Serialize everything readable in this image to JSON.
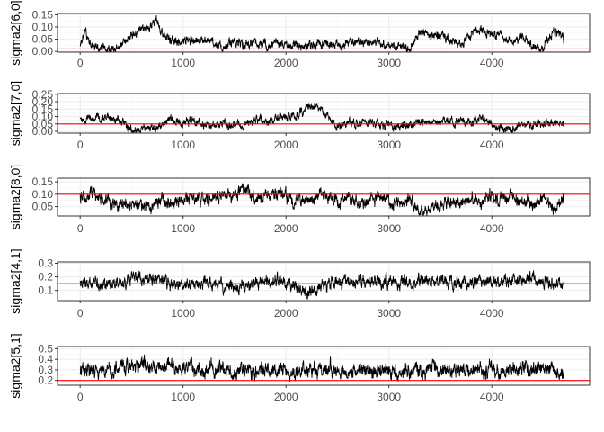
{
  "colors": {
    "trace": "#000000",
    "reference_line": "#ff0000",
    "grid_major": "#ebebeb",
    "grid_minor": "#f4f4f4",
    "panel_border": "#333333",
    "tick_text": "#4d4d4d"
  },
  "chart_data": [
    {
      "type": "line",
      "ylabel": "sigma2[6,0]",
      "x_ticks": [
        0,
        1000,
        2000,
        3000,
        4000
      ],
      "y_ticks": [
        0.0,
        0.05,
        0.1,
        0.15
      ],
      "y_tick_labels": [
        "0.00",
        "0.05",
        "0.10",
        "0.15"
      ],
      "xlim": [
        -220,
        4950
      ],
      "ylim": [
        -0.003,
        0.155
      ],
      "n_iterations": 4700,
      "reference_value": 0.01,
      "trace_profile": [
        [
          0,
          0.015
        ],
        [
          50,
          0.08
        ],
        [
          120,
          0.02
        ],
        [
          250,
          0.005
        ],
        [
          350,
          0.01
        ],
        [
          400,
          0.03
        ],
        [
          500,
          0.06
        ],
        [
          600,
          0.09
        ],
        [
          700,
          0.11
        ],
        [
          740,
          0.14
        ],
        [
          800,
          0.07
        ],
        [
          900,
          0.04
        ],
        [
          1000,
          0.045
        ],
        [
          1100,
          0.04
        ],
        [
          1200,
          0.05
        ],
        [
          1300,
          0.03
        ],
        [
          1400,
          0.02
        ],
        [
          1500,
          0.04
        ],
        [
          1600,
          0.025
        ],
        [
          1700,
          0.035
        ],
        [
          1800,
          0.02
        ],
        [
          1900,
          0.03
        ],
        [
          2000,
          0.025
        ],
        [
          2100,
          0.02
        ],
        [
          2200,
          0.03
        ],
        [
          2300,
          0.035
        ],
        [
          2400,
          0.03
        ],
        [
          2500,
          0.025
        ],
        [
          2600,
          0.03
        ],
        [
          2700,
          0.035
        ],
        [
          2800,
          0.04
        ],
        [
          2900,
          0.035
        ],
        [
          3000,
          0.03
        ],
        [
          3100,
          0.02
        ],
        [
          3200,
          0.01
        ],
        [
          3300,
          0.08
        ],
        [
          3400,
          0.07
        ],
        [
          3500,
          0.06
        ],
        [
          3600,
          0.05
        ],
        [
          3700,
          0.03
        ],
        [
          3800,
          0.07
        ],
        [
          3900,
          0.09
        ],
        [
          4000,
          0.065
        ],
        [
          4100,
          0.06
        ],
        [
          4200,
          0.03
        ],
        [
          4300,
          0.06
        ],
        [
          4400,
          0.02
        ],
        [
          4500,
          0.015
        ],
        [
          4600,
          0.08
        ],
        [
          4700,
          0.05
        ]
      ],
      "noise_level": 0.012
    },
    {
      "type": "line",
      "ylabel": "sigma2[7,0]",
      "x_ticks": [
        0,
        1000,
        2000,
        3000,
        4000
      ],
      "y_ticks": [
        0.0,
        0.05,
        0.1,
        0.15,
        0.2,
        0.25
      ],
      "y_tick_labels": [
        "0.00",
        "0.05",
        "0.10",
        "0.15",
        "0.20",
        "0.25"
      ],
      "xlim": [
        -220,
        4950
      ],
      "ylim": [
        -0.012,
        0.255
      ],
      "n_iterations": 4700,
      "reference_value": 0.05,
      "trace_profile": [
        [
          0,
          0.07
        ],
        [
          100,
          0.09
        ],
        [
          200,
          0.1
        ],
        [
          300,
          0.09
        ],
        [
          400,
          0.06
        ],
        [
          500,
          0.01
        ],
        [
          600,
          0.0
        ],
        [
          700,
          0.02
        ],
        [
          800,
          0.05
        ],
        [
          900,
          0.08
        ],
        [
          1000,
          0.06
        ],
        [
          1100,
          0.08
        ],
        [
          1200,
          0.03
        ],
        [
          1300,
          0.04
        ],
        [
          1400,
          0.05
        ],
        [
          1500,
          0.05
        ],
        [
          1600,
          0.04
        ],
        [
          1700,
          0.09
        ],
        [
          1800,
          0.06
        ],
        [
          1900,
          0.1
        ],
        [
          2000,
          0.09
        ],
        [
          2100,
          0.1
        ],
        [
          2200,
          0.16
        ],
        [
          2300,
          0.17
        ],
        [
          2400,
          0.1
        ],
        [
          2500,
          0.04
        ],
        [
          2600,
          0.06
        ],
        [
          2700,
          0.05
        ],
        [
          2800,
          0.06
        ],
        [
          2900,
          0.04
        ],
        [
          3000,
          0.05
        ],
        [
          3100,
          0.03
        ],
        [
          3200,
          0.05
        ],
        [
          3300,
          0.06
        ],
        [
          3400,
          0.06
        ],
        [
          3500,
          0.07
        ],
        [
          3600,
          0.06
        ],
        [
          3700,
          0.07
        ],
        [
          3800,
          0.05
        ],
        [
          3900,
          0.1
        ],
        [
          4000,
          0.05
        ],
        [
          4100,
          0.01
        ],
        [
          4200,
          0.02
        ],
        [
          4300,
          0.05
        ],
        [
          4400,
          0.04
        ],
        [
          4500,
          0.06
        ],
        [
          4600,
          0.05
        ],
        [
          4700,
          0.06
        ]
      ],
      "noise_level": 0.018
    },
    {
      "type": "line",
      "ylabel": "sigma2[8,0]",
      "x_ticks": [
        0,
        1000,
        2000,
        3000,
        4000
      ],
      "y_ticks": [
        0.05,
        0.1,
        0.15
      ],
      "y_tick_labels": [
        "0.05",
        "0.10",
        "0.15"
      ],
      "xlim": [
        -220,
        4950
      ],
      "ylim": [
        0.012,
        0.165
      ],
      "n_iterations": 4700,
      "reference_value": 0.1,
      "trace_profile": [
        [
          0,
          0.08
        ],
        [
          100,
          0.11
        ],
        [
          200,
          0.09
        ],
        [
          300,
          0.07
        ],
        [
          400,
          0.05
        ],
        [
          500,
          0.06
        ],
        [
          600,
          0.05
        ],
        [
          700,
          0.04
        ],
        [
          800,
          0.08
        ],
        [
          900,
          0.06
        ],
        [
          1000,
          0.08
        ],
        [
          1100,
          0.09
        ],
        [
          1200,
          0.07
        ],
        [
          1300,
          0.08
        ],
        [
          1400,
          0.11
        ],
        [
          1500,
          0.09
        ],
        [
          1600,
          0.12
        ],
        [
          1700,
          0.08
        ],
        [
          1800,
          0.09
        ],
        [
          1900,
          0.1
        ],
        [
          2000,
          0.09
        ],
        [
          2100,
          0.07
        ],
        [
          2200,
          0.08
        ],
        [
          2300,
          0.09
        ],
        [
          2400,
          0.1
        ],
        [
          2500,
          0.06
        ],
        [
          2600,
          0.09
        ],
        [
          2700,
          0.07
        ],
        [
          2800,
          0.08
        ],
        [
          2900,
          0.09
        ],
        [
          3000,
          0.07
        ],
        [
          3100,
          0.06
        ],
        [
          3200,
          0.08
        ],
        [
          3300,
          0.03
        ],
        [
          3400,
          0.04
        ],
        [
          3500,
          0.06
        ],
        [
          3600,
          0.07
        ],
        [
          3700,
          0.06
        ],
        [
          3800,
          0.08
        ],
        [
          3900,
          0.07
        ],
        [
          4000,
          0.09
        ],
        [
          4100,
          0.08
        ],
        [
          4200,
          0.09
        ],
        [
          4300,
          0.07
        ],
        [
          4400,
          0.06
        ],
        [
          4500,
          0.09
        ],
        [
          4600,
          0.05
        ],
        [
          4700,
          0.08
        ]
      ],
      "noise_level": 0.016
    },
    {
      "type": "line",
      "ylabel": "sigma2[4,1]",
      "x_ticks": [
        0,
        1000,
        2000,
        3000,
        4000
      ],
      "y_ticks": [
        0.1,
        0.2,
        0.3
      ],
      "y_tick_labels": [
        "0.1",
        "0.2",
        "0.3"
      ],
      "xlim": [
        -220,
        4950
      ],
      "ylim": [
        0.025,
        0.31
      ],
      "n_iterations": 4700,
      "reference_value": 0.15,
      "trace_profile": [
        [
          0,
          0.15
        ],
        [
          200,
          0.14
        ],
        [
          400,
          0.16
        ],
        [
          600,
          0.2
        ],
        [
          700,
          0.19
        ],
        [
          800,
          0.17
        ],
        [
          900,
          0.15
        ],
        [
          1000,
          0.15
        ],
        [
          1200,
          0.15
        ],
        [
          1400,
          0.14
        ],
        [
          1500,
          0.12
        ],
        [
          1600,
          0.13
        ],
        [
          1700,
          0.16
        ],
        [
          1800,
          0.17
        ],
        [
          1900,
          0.18
        ],
        [
          2000,
          0.15
        ],
        [
          2100,
          0.14
        ],
        [
          2200,
          0.08
        ],
        [
          2300,
          0.11
        ],
        [
          2400,
          0.14
        ],
        [
          2500,
          0.15
        ],
        [
          2600,
          0.17
        ],
        [
          2700,
          0.17
        ],
        [
          2800,
          0.16
        ],
        [
          3000,
          0.16
        ],
        [
          3200,
          0.16
        ],
        [
          3400,
          0.17
        ],
        [
          3600,
          0.16
        ],
        [
          3800,
          0.16
        ],
        [
          4000,
          0.17
        ],
        [
          4200,
          0.17
        ],
        [
          4400,
          0.19
        ],
        [
          4600,
          0.15
        ],
        [
          4700,
          0.13
        ]
      ],
      "noise_level": 0.03
    },
    {
      "type": "line",
      "ylabel": "sigma2[5,1]",
      "x_ticks": [
        0,
        1000,
        2000,
        3000,
        4000
      ],
      "y_ticks": [
        0.2,
        0.3,
        0.4,
        0.5
      ],
      "y_tick_labels": [
        "0.2",
        "0.3",
        "0.4",
        "0.5"
      ],
      "xlim": [
        -220,
        4950
      ],
      "ylim": [
        0.155,
        0.52
      ],
      "n_iterations": 4700,
      "reference_value": 0.2,
      "trace_profile": [
        [
          0,
          0.3
        ],
        [
          300,
          0.3
        ],
        [
          500,
          0.34
        ],
        [
          600,
          0.36
        ],
        [
          800,
          0.32
        ],
        [
          1000,
          0.31
        ],
        [
          1200,
          0.3
        ],
        [
          1500,
          0.29
        ],
        [
          1700,
          0.3
        ],
        [
          2000,
          0.29
        ],
        [
          2300,
          0.3
        ],
        [
          2600,
          0.3
        ],
        [
          3000,
          0.29
        ],
        [
          3300,
          0.3
        ],
        [
          3600,
          0.3
        ],
        [
          4000,
          0.3
        ],
        [
          4300,
          0.31
        ],
        [
          4500,
          0.32
        ],
        [
          4700,
          0.29
        ]
      ],
      "noise_level": 0.045
    }
  ]
}
